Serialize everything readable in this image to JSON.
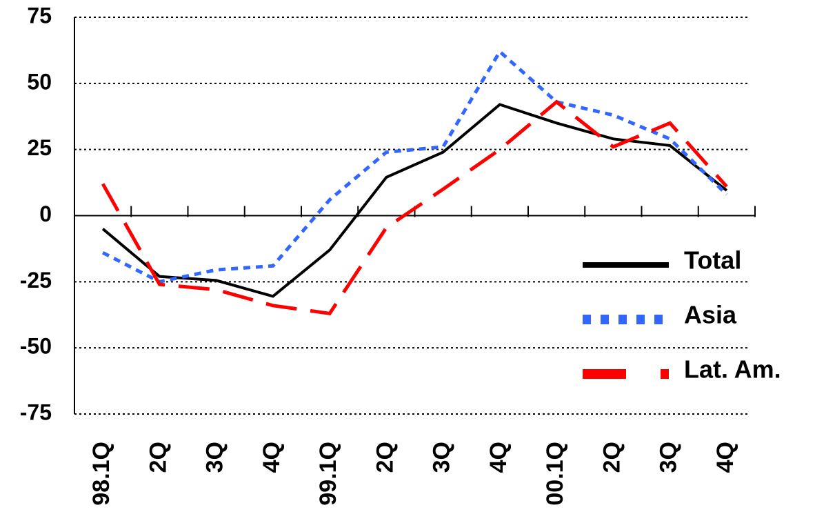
{
  "chart_data": {
    "type": "line",
    "categories": [
      "98.1Q",
      "2Q",
      "3Q",
      "4Q",
      "99.1Q",
      "2Q",
      "3Q",
      "4Q",
      "00.1Q",
      "2Q",
      "3Q",
      "4Q"
    ],
    "series": [
      {
        "name": "Total",
        "color": "#000000",
        "values": [
          -5,
          -23,
          -24.5,
          -30.5,
          -13,
          14.5,
          24,
          42,
          35,
          29,
          26.5,
          9.5
        ]
      },
      {
        "name": "Asia",
        "color": "#3366ff",
        "values": [
          -14,
          -25,
          -20.5,
          -19,
          6,
          24,
          26,
          62,
          43,
          38,
          29,
          8
        ]
      },
      {
        "name": "Lat. Am.",
        "color": "#ff0000",
        "values": [
          12,
          -26,
          -28,
          -34,
          -37,
          -4.5,
          10,
          25,
          43,
          26,
          35,
          11
        ]
      }
    ],
    "ylim": [
      -75,
      75
    ],
    "yticks": [
      -75,
      -50,
      -25,
      0,
      25,
      50,
      75
    ],
    "grid": true,
    "legend": "right"
  }
}
